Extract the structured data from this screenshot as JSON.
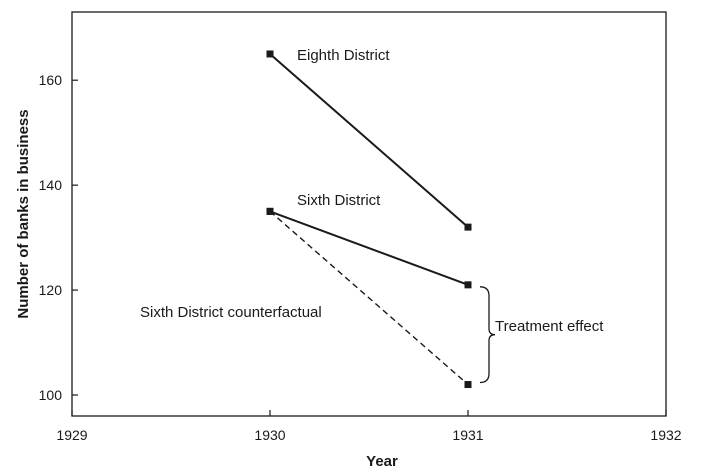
{
  "chart_data": {
    "type": "line",
    "xlabel": "Year",
    "ylabel": "Number of banks in business",
    "xlim": [
      1929,
      1932
    ],
    "ylim": [
      96,
      173
    ],
    "x_ticks": [
      1929,
      1930,
      1931,
      1932
    ],
    "y_ticks": [
      100,
      120,
      140,
      160
    ],
    "grid": false,
    "legend": "none",
    "series": [
      {
        "name": "Eighth District",
        "x": [
          1930,
          1931
        ],
        "y": [
          165,
          132
        ],
        "style": "solid",
        "color": "#1a1a1a"
      },
      {
        "name": "Sixth District",
        "x": [
          1930,
          1931
        ],
        "y": [
          135,
          121
        ],
        "style": "solid",
        "color": "#1a1a1a"
      },
      {
        "name": "Sixth District counterfactual",
        "x": [
          1930,
          1931
        ],
        "y": [
          135,
          102
        ],
        "style": "dashed",
        "color": "#1a1a1a"
      }
    ],
    "annotations": [
      {
        "text": "Treatment effect",
        "x": 1931,
        "y_from": 102,
        "y_to": 121
      }
    ]
  }
}
